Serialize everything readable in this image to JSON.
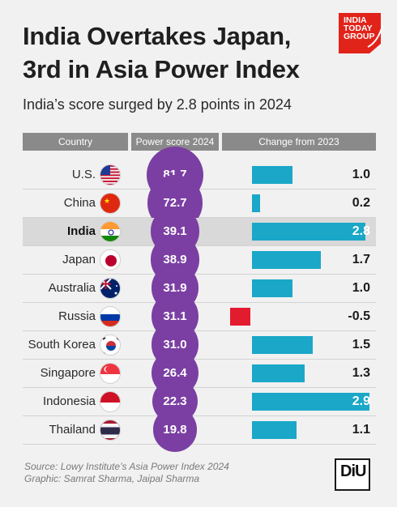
{
  "header": {
    "title_line1": "India Overtakes Japan,",
    "title_line2": "3rd in Asia Power Index",
    "subtitle": "India’s score surged by 2.8 points in 2024",
    "logo_line1": "INDIA",
    "logo_line2": "TODAY",
    "logo_line3": "GROUP"
  },
  "columns": {
    "country": "Country",
    "score": "Power score 2024",
    "change": "Change from 2023"
  },
  "colors": {
    "accent": "#7b3fa3",
    "bar_positive": "#1aa7c8",
    "bar_negative": "#e31b2f",
    "highlight_row": "#d9d9d9",
    "header_bg": "#8a8a8a",
    "logo_red": "#e2231a"
  },
  "chart_data": {
    "type": "table",
    "highlight": "India",
    "columns": [
      "Country",
      "Power score 2024",
      "Change from 2023"
    ],
    "rows": [
      {
        "country": "U.S.",
        "flag": "us-flag-icon",
        "score": "81.7",
        "change": "1.0"
      },
      {
        "country": "China",
        "flag": "china-flag-icon",
        "score": "72.7",
        "change": "0.2"
      },
      {
        "country": "India",
        "flag": "india-flag-icon",
        "score": "39.1",
        "change": "2.8"
      },
      {
        "country": "Japan",
        "flag": "japan-flag-icon",
        "score": "38.9",
        "change": "1.7"
      },
      {
        "country": "Australia",
        "flag": "australia-flag-icon",
        "score": "31.9",
        "change": "1.0"
      },
      {
        "country": "Russia",
        "flag": "russia-flag-icon",
        "score": "31.1",
        "change": "-0.5"
      },
      {
        "country": "South Korea",
        "flag": "south-korea-flag-icon",
        "score": "31.0",
        "change": "1.5"
      },
      {
        "country": "Singapore",
        "flag": "singapore-flag-icon",
        "score": "26.4",
        "change": "1.3"
      },
      {
        "country": "Indonesia",
        "flag": "indonesia-flag-icon",
        "score": "22.3",
        "change": "2.9"
      },
      {
        "country": "Thailand",
        "flag": "thailand-flag-icon",
        "score": "19.8",
        "change": "1.1"
      }
    ]
  },
  "footer": {
    "source": "Source: Lowy Institute’s Asia Power Index 2024",
    "graphic": "Graphic: Samrat Sharma, Jaipal Sharma",
    "logo": "DiU"
  }
}
